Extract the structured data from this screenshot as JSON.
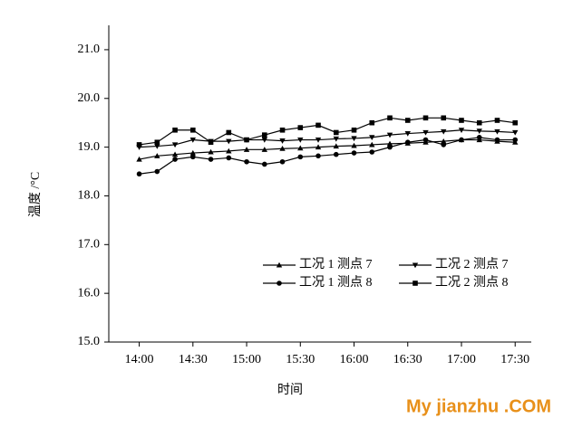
{
  "chart_data": {
    "type": "line",
    "x_label": "时间",
    "y_label": "温度 /°C",
    "watermark": "My jianzhu .COM",
    "x": [
      840,
      850,
      860,
      870,
      880,
      890,
      900,
      910,
      920,
      930,
      940,
      950,
      960,
      970,
      980,
      990,
      1000,
      1010,
      1020,
      1030,
      1040,
      1050
    ],
    "xlim": [
      823,
      1059
    ],
    "xticks": [
      {
        "value": 840,
        "label": "14:00"
      },
      {
        "value": 870,
        "label": "14:30"
      },
      {
        "value": 900,
        "label": "15:00"
      },
      {
        "value": 930,
        "label": "15:30"
      },
      {
        "value": 960,
        "label": "16:00"
      },
      {
        "value": 990,
        "label": "16:30"
      },
      {
        "value": 1020,
        "label": "17:00"
      },
      {
        "value": 1050,
        "label": "17:30"
      }
    ],
    "ylim": [
      15,
      21.5
    ],
    "yticks": [
      {
        "value": 15,
        "label": "15.0"
      },
      {
        "value": 16,
        "label": "16.0"
      },
      {
        "value": 17,
        "label": "17.0"
      },
      {
        "value": 18,
        "label": "18.0"
      },
      {
        "value": 19,
        "label": "19.0"
      },
      {
        "value": 20,
        "label": "20.0"
      },
      {
        "value": 21,
        "label": "21.0"
      }
    ],
    "legend": "lower-right",
    "series": [
      {
        "name": "工况 1 测点 7",
        "color": "#000000",
        "marker": "triangle-up",
        "values": [
          18.75,
          18.82,
          18.85,
          18.88,
          18.9,
          18.92,
          18.95,
          18.95,
          18.97,
          18.98,
          19.0,
          19.02,
          19.03,
          19.05,
          19.07,
          19.08,
          19.1,
          19.12,
          19.15,
          19.15,
          19.12,
          19.1
        ]
      },
      {
        "name": "工况 2 测点 7",
        "color": "#000000",
        "marker": "triangle-down",
        "values": [
          19.0,
          19.02,
          19.05,
          19.15,
          19.12,
          19.12,
          19.15,
          19.15,
          19.13,
          19.15,
          19.15,
          19.17,
          19.18,
          19.2,
          19.25,
          19.28,
          19.3,
          19.32,
          19.35,
          19.33,
          19.32,
          19.3
        ]
      },
      {
        "name": "工况 1 测点 8",
        "color": "#000000",
        "marker": "circle",
        "values": [
          18.45,
          18.5,
          18.75,
          18.8,
          18.75,
          18.78,
          18.7,
          18.65,
          18.7,
          18.8,
          18.82,
          18.85,
          18.88,
          18.9,
          19.0,
          19.1,
          19.15,
          19.05,
          19.15,
          19.2,
          19.15,
          19.15
        ]
      },
      {
        "name": "工况 2 测点 8",
        "color": "#000000",
        "marker": "square",
        "values": [
          19.05,
          19.1,
          19.35,
          19.35,
          19.1,
          19.3,
          19.15,
          19.25,
          19.35,
          19.4,
          19.45,
          19.3,
          19.35,
          19.5,
          19.6,
          19.55,
          19.6,
          19.6,
          19.55,
          19.5,
          19.55,
          19.5
        ]
      }
    ]
  }
}
